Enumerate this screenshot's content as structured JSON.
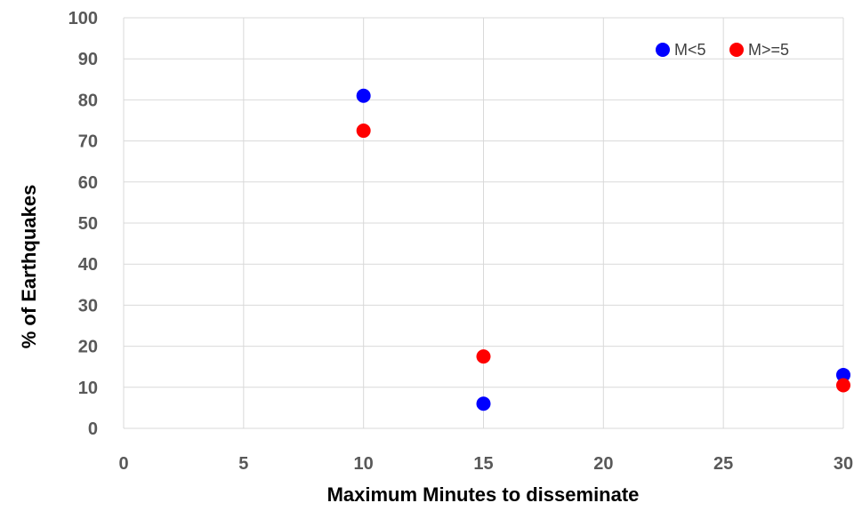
{
  "chart_data": {
    "type": "scatter",
    "title": "",
    "xlabel": "Maximum Minutes to disseminate",
    "ylabel": "% of Earthquakes",
    "xlim": [
      0,
      30
    ],
    "ylim": [
      0,
      100
    ],
    "xticks": [
      0,
      5,
      10,
      15,
      20,
      25,
      30
    ],
    "yticks": [
      0,
      10,
      20,
      30,
      40,
      50,
      60,
      70,
      80,
      90,
      100
    ],
    "grid": true,
    "legend_position": "top-right",
    "series": [
      {
        "name": "M<5",
        "color": "#0000ff",
        "points": [
          {
            "x": 10,
            "y": 81
          },
          {
            "x": 15,
            "y": 6
          },
          {
            "x": 30,
            "y": 13
          }
        ]
      },
      {
        "name": "M>=5",
        "color": "#ff0000",
        "points": [
          {
            "x": 10,
            "y": 72.5
          },
          {
            "x": 15,
            "y": 17.5
          },
          {
            "x": 30,
            "y": 10.5
          }
        ]
      }
    ]
  }
}
